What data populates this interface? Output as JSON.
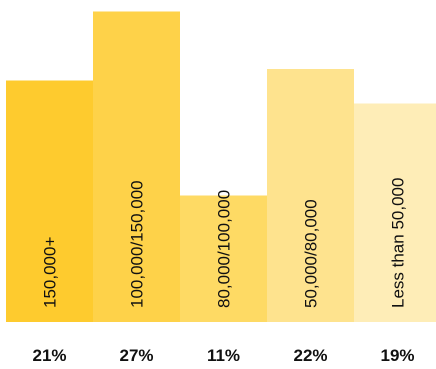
{
  "chart_data": {
    "type": "bar",
    "categories": [
      "150,000+",
      "100,000/150,000",
      "80,000/100,000",
      "50,000/80,000",
      "Less than 50,000"
    ],
    "values": [
      21,
      27,
      11,
      22,
      19
    ],
    "value_labels": [
      "21%",
      "27%",
      "11%",
      "22%",
      "19%"
    ],
    "colors": [
      "#FECB2E",
      "#FED249",
      "#FEDA64",
      "#FEE38E",
      "#FEEDB7"
    ],
    "title": "",
    "xlabel": "",
    "ylabel": "",
    "grid": false,
    "legend": "none"
  }
}
